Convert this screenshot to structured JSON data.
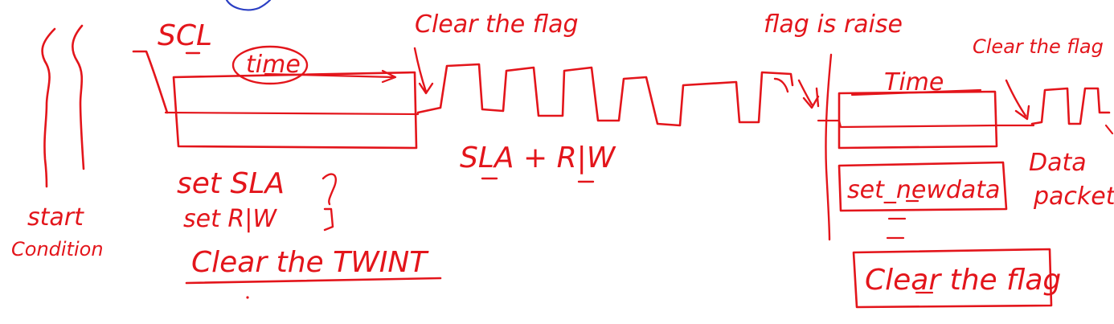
{
  "ink_color": "#e3151b",
  "accent_color": "#2b3fc4",
  "labels": {
    "start_condition_line1": "start",
    "start_condition_line2": "Condition",
    "scl": "SCL",
    "time_oval": "time",
    "clear_the_flag": "Clear the flag",
    "flag_is_raise": "flag is raise",
    "clear_the_flag_right": "Clear the flag",
    "time_right": "Time",
    "sla_rw": "SLA + R|W",
    "set_sla": "set SLA",
    "set_rw": "set R|W",
    "clear_twint": "Clear the TWINT",
    "set_new_data": "set_newdata",
    "clear_the_flag_box": "Clear the flag",
    "data_packet_line1": "Data",
    "data_packet_line2": "packet"
  }
}
